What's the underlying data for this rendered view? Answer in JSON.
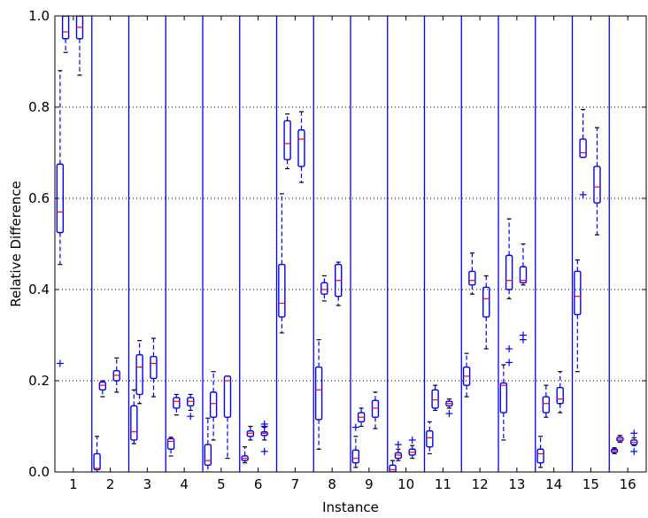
{
  "chart_data": {
    "type": "box",
    "xlabel": "Instance",
    "ylabel": "Relative Difference",
    "categories": [
      "1",
      "2",
      "3",
      "4",
      "5",
      "6",
      "7",
      "8",
      "9",
      "10",
      "11",
      "12",
      "13",
      "14",
      "15",
      "16"
    ],
    "ylim": [
      0,
      1.0
    ],
    "yticks": [
      0.0,
      0.2,
      0.4,
      0.6,
      0.8,
      1.0
    ],
    "ytick_labels": [
      "0.0",
      "0.2",
      "0.4",
      "0.6",
      "0.8",
      "1.0"
    ],
    "grid": "horizontal-dotted",
    "colors": {
      "box": "#0000ff",
      "median": "#ff0000",
      "separator": "#0000ff",
      "grid": "#000000"
    },
    "boxes": [
      {
        "group": 1,
        "slot": 0,
        "wlo": 0.455,
        "q1": 0.525,
        "med": 0.57,
        "q3": 0.675,
        "whi": 0.88,
        "outliers": [
          0.238
        ]
      },
      {
        "group": 1,
        "slot": 1,
        "wlo": 0.92,
        "q1": 0.95,
        "med": 0.965,
        "q3": 1.0,
        "whi": 1.0,
        "outliers": []
      },
      {
        "group": 1,
        "slot": 2,
        "wlo": 0.87,
        "q1": 0.95,
        "med": 0.975,
        "q3": 1.0,
        "whi": 1.0,
        "outliers": []
      },
      {
        "group": 2,
        "slot": 0,
        "wlo": 0.0,
        "q1": 0.005,
        "med": 0.008,
        "q3": 0.04,
        "whi": 0.078,
        "outliers": []
      },
      {
        "group": 2,
        "slot": 1,
        "wlo": 0.165,
        "q1": 0.18,
        "med": 0.19,
        "q3": 0.197,
        "whi": 0.2,
        "outliers": []
      },
      {
        "group": 2,
        "slot": 2,
        "wlo": 0.175,
        "q1": 0.2,
        "med": 0.212,
        "q3": 0.222,
        "whi": 0.25,
        "outliers": []
      },
      {
        "group": 3,
        "slot": 0,
        "wlo": 0.062,
        "q1": 0.07,
        "med": 0.088,
        "q3": 0.145,
        "whi": 0.18,
        "outliers": []
      },
      {
        "group": 3,
        "slot": 1,
        "wlo": 0.15,
        "q1": 0.17,
        "med": 0.23,
        "q3": 0.257,
        "whi": 0.288,
        "outliers": []
      },
      {
        "group": 3,
        "slot": 2,
        "wlo": 0.165,
        "q1": 0.205,
        "med": 0.238,
        "q3": 0.253,
        "whi": 0.293,
        "outliers": []
      },
      {
        "group": 4,
        "slot": 0,
        "wlo": 0.035,
        "q1": 0.05,
        "med": 0.067,
        "q3": 0.073,
        "whi": 0.076,
        "outliers": []
      },
      {
        "group": 4,
        "slot": 1,
        "wlo": 0.125,
        "q1": 0.14,
        "med": 0.155,
        "q3": 0.163,
        "whi": 0.17,
        "outliers": []
      },
      {
        "group": 4,
        "slot": 2,
        "wlo": 0.135,
        "q1": 0.145,
        "med": 0.155,
        "q3": 0.163,
        "whi": 0.17,
        "outliers": [
          0.122
        ]
      },
      {
        "group": 5,
        "slot": 0,
        "wlo": 0.0,
        "q1": 0.015,
        "med": 0.025,
        "q3": 0.06,
        "whi": 0.118,
        "outliers": []
      },
      {
        "group": 5,
        "slot": 1,
        "wlo": 0.07,
        "q1": 0.12,
        "med": 0.15,
        "q3": 0.175,
        "whi": 0.22,
        "outliers": []
      },
      {
        "group": 5,
        "slot": 2,
        "wlo": 0.03,
        "q1": 0.12,
        "med": 0.2,
        "q3": 0.21,
        "whi": 0.21,
        "outliers": []
      },
      {
        "group": 6,
        "slot": 0,
        "wlo": 0.02,
        "q1": 0.025,
        "med": 0.03,
        "q3": 0.035,
        "whi": 0.055,
        "outliers": []
      },
      {
        "group": 6,
        "slot": 1,
        "wlo": 0.07,
        "q1": 0.078,
        "med": 0.085,
        "q3": 0.09,
        "whi": 0.1,
        "outliers": []
      },
      {
        "group": 6,
        "slot": 2,
        "wlo": 0.07,
        "q1": 0.08,
        "med": 0.085,
        "q3": 0.088,
        "whi": 0.098,
        "outliers": [
          0.045,
          0.1,
          0.105
        ]
      },
      {
        "group": 7,
        "slot": 0,
        "wlo": 0.305,
        "q1": 0.34,
        "med": 0.37,
        "q3": 0.455,
        "whi": 0.61,
        "outliers": []
      },
      {
        "group": 7,
        "slot": 1,
        "wlo": 0.665,
        "q1": 0.685,
        "med": 0.72,
        "q3": 0.77,
        "whi": 0.785,
        "outliers": []
      },
      {
        "group": 7,
        "slot": 2,
        "wlo": 0.635,
        "q1": 0.67,
        "med": 0.73,
        "q3": 0.75,
        "whi": 0.79,
        "outliers": []
      },
      {
        "group": 8,
        "slot": 0,
        "wlo": 0.05,
        "q1": 0.115,
        "med": 0.18,
        "q3": 0.23,
        "whi": 0.29,
        "outliers": []
      },
      {
        "group": 8,
        "slot": 1,
        "wlo": 0.375,
        "q1": 0.39,
        "med": 0.4,
        "q3": 0.415,
        "whi": 0.43,
        "outliers": []
      },
      {
        "group": 8,
        "slot": 2,
        "wlo": 0.365,
        "q1": 0.385,
        "med": 0.42,
        "q3": 0.455,
        "whi": 0.46,
        "outliers": []
      },
      {
        "group": 9,
        "slot": 0,
        "wlo": 0.01,
        "q1": 0.02,
        "med": 0.03,
        "q3": 0.048,
        "whi": 0.078,
        "outliers": [
          0.098
        ]
      },
      {
        "group": 9,
        "slot": 1,
        "wlo": 0.1,
        "q1": 0.11,
        "med": 0.12,
        "q3": 0.13,
        "whi": 0.14,
        "outliers": []
      },
      {
        "group": 9,
        "slot": 2,
        "wlo": 0.095,
        "q1": 0.12,
        "med": 0.14,
        "q3": 0.157,
        "whi": 0.175,
        "outliers": []
      },
      {
        "group": 10,
        "slot": 0,
        "wlo": 0.0,
        "q1": 0.0,
        "med": 0.005,
        "q3": 0.015,
        "whi": 0.025,
        "outliers": []
      },
      {
        "group": 10,
        "slot": 1,
        "wlo": 0.025,
        "q1": 0.03,
        "med": 0.037,
        "q3": 0.042,
        "whi": 0.05,
        "outliers": [
          0.06
        ]
      },
      {
        "group": 10,
        "slot": 2,
        "wlo": 0.03,
        "q1": 0.037,
        "med": 0.043,
        "q3": 0.05,
        "whi": 0.058,
        "outliers": [
          0.07
        ]
      },
      {
        "group": 11,
        "slot": 0,
        "wlo": 0.04,
        "q1": 0.055,
        "med": 0.075,
        "q3": 0.09,
        "whi": 0.11,
        "outliers": []
      },
      {
        "group": 11,
        "slot": 1,
        "wlo": 0.135,
        "q1": 0.14,
        "med": 0.158,
        "q3": 0.18,
        "whi": 0.19,
        "outliers": []
      },
      {
        "group": 11,
        "slot": 2,
        "wlo": 0.14,
        "q1": 0.145,
        "med": 0.15,
        "q3": 0.155,
        "whi": 0.16,
        "outliers": [
          0.128
        ]
      },
      {
        "group": 12,
        "slot": 0,
        "wlo": 0.165,
        "q1": 0.19,
        "med": 0.21,
        "q3": 0.23,
        "whi": 0.26,
        "outliers": []
      },
      {
        "group": 12,
        "slot": 1,
        "wlo": 0.39,
        "q1": 0.41,
        "med": 0.42,
        "q3": 0.44,
        "whi": 0.48,
        "outliers": []
      },
      {
        "group": 12,
        "slot": 2,
        "wlo": 0.27,
        "q1": 0.34,
        "med": 0.38,
        "q3": 0.405,
        "whi": 0.43,
        "outliers": []
      },
      {
        "group": 13,
        "slot": 0,
        "wlo": 0.07,
        "q1": 0.13,
        "med": 0.19,
        "q3": 0.195,
        "whi": 0.235,
        "outliers": []
      },
      {
        "group": 13,
        "slot": 1,
        "wlo": 0.38,
        "q1": 0.4,
        "med": 0.42,
        "q3": 0.475,
        "whi": 0.555,
        "outliers": [
          0.24,
          0.27
        ]
      },
      {
        "group": 13,
        "slot": 2,
        "wlo": 0.41,
        "q1": 0.415,
        "med": 0.42,
        "q3": 0.45,
        "whi": 0.5,
        "outliers": [
          0.29,
          0.3
        ]
      },
      {
        "group": 14,
        "slot": 0,
        "wlo": 0.01,
        "q1": 0.02,
        "med": 0.04,
        "q3": 0.05,
        "whi": 0.078,
        "outliers": []
      },
      {
        "group": 14,
        "slot": 1,
        "wlo": 0.12,
        "q1": 0.13,
        "med": 0.15,
        "q3": 0.165,
        "whi": 0.19,
        "outliers": []
      },
      {
        "group": 14,
        "slot": 2,
        "wlo": 0.13,
        "q1": 0.15,
        "med": 0.16,
        "q3": 0.185,
        "whi": 0.22,
        "outliers": []
      },
      {
        "group": 15,
        "slot": 0,
        "wlo": 0.22,
        "q1": 0.345,
        "med": 0.385,
        "q3": 0.44,
        "whi": 0.465,
        "outliers": []
      },
      {
        "group": 15,
        "slot": 1,
        "wlo": 0.69,
        "q1": 0.69,
        "med": 0.7,
        "q3": 0.73,
        "whi": 0.795,
        "outliers": [
          0.608
        ]
      },
      {
        "group": 15,
        "slot": 2,
        "wlo": 0.52,
        "q1": 0.59,
        "med": 0.625,
        "q3": 0.67,
        "whi": 0.755,
        "outliers": []
      },
      {
        "group": 16,
        "slot": 0,
        "wlo": 0.04,
        "q1": 0.043,
        "med": 0.047,
        "q3": 0.05,
        "whi": 0.053,
        "outliers": []
      },
      {
        "group": 16,
        "slot": 1,
        "wlo": 0.065,
        "q1": 0.068,
        "med": 0.072,
        "q3": 0.076,
        "whi": 0.08,
        "outliers": []
      },
      {
        "group": 16,
        "slot": 2,
        "wlo": 0.058,
        "q1": 0.06,
        "med": 0.065,
        "q3": 0.07,
        "whi": 0.075,
        "outliers": [
          0.045,
          0.085
        ]
      }
    ]
  }
}
